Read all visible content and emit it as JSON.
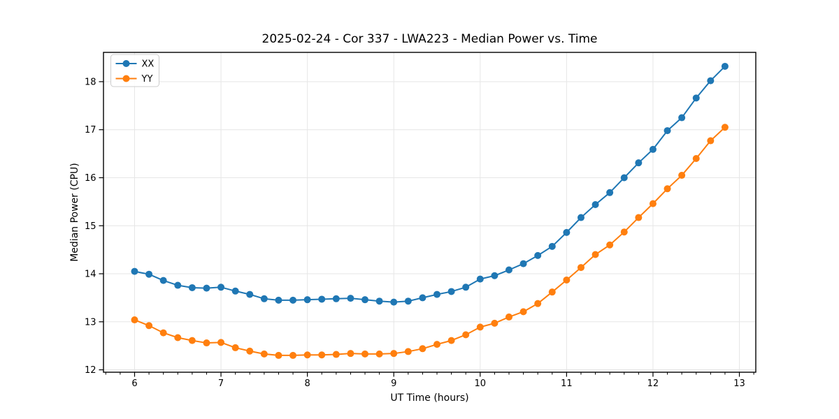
{
  "chart_data": {
    "type": "line",
    "title": "2025-02-24 - Cor 337 - LWA223 - Median Power vs. Time",
    "xlabel": "UT Time (hours)",
    "ylabel": "Median Power (CPU)",
    "x": [
      6.0,
      6.1667,
      6.3333,
      6.5,
      6.6667,
      6.8333,
      7.0,
      7.1667,
      7.3333,
      7.5,
      7.6667,
      7.8333,
      8.0,
      8.1667,
      8.3333,
      8.5,
      8.6667,
      8.8333,
      9.0,
      9.1667,
      9.3333,
      9.5,
      9.6667,
      9.8333,
      10.0,
      10.1667,
      10.3333,
      10.5,
      10.6667,
      10.8333,
      11.0,
      11.1667,
      11.3333,
      11.5,
      11.6667,
      11.8333,
      12.0,
      12.1667,
      12.3333,
      12.5,
      12.6667,
      12.8333
    ],
    "series": [
      {
        "name": "XX",
        "color": "#1f77b4",
        "values": [
          14.05,
          13.99,
          13.86,
          13.76,
          13.71,
          13.7,
          13.72,
          13.64,
          13.57,
          13.48,
          13.45,
          13.45,
          13.46,
          13.47,
          13.48,
          13.49,
          13.46,
          13.43,
          13.41,
          13.43,
          13.5,
          13.57,
          13.63,
          13.72,
          13.89,
          13.96,
          14.08,
          14.21,
          14.38,
          14.57,
          14.86,
          15.17,
          15.44,
          15.69,
          16.0,
          16.31,
          16.59,
          16.98,
          17.25,
          17.66,
          18.02,
          18.32
        ]
      },
      {
        "name": "YY",
        "color": "#ff7f0e",
        "values": [
          13.04,
          12.92,
          12.77,
          12.67,
          12.61,
          12.56,
          12.57,
          12.46,
          12.39,
          12.33,
          12.3,
          12.3,
          12.31,
          12.31,
          12.32,
          12.34,
          12.33,
          12.33,
          12.34,
          12.38,
          12.44,
          12.53,
          12.61,
          12.73,
          12.89,
          12.97,
          13.1,
          13.21,
          13.38,
          13.62,
          13.87,
          14.13,
          14.4,
          14.6,
          14.87,
          15.17,
          15.46,
          15.77,
          16.05,
          16.4,
          16.77,
          17.05
        ]
      }
    ],
    "xlim": [
      5.64,
      13.19
    ],
    "ylim": [
      11.95,
      18.61
    ],
    "xticks": [
      6,
      7,
      8,
      9,
      10,
      11,
      12,
      13
    ],
    "yticks": [
      12,
      13,
      14,
      15,
      16,
      17,
      18
    ],
    "x_minor_tick_interval": 0.166667,
    "grid": true,
    "grid_color": "#e6e6e6",
    "spine_color": "#000000",
    "tick_label_color": "#000000",
    "legend_position": "upper-left",
    "marker": "circle",
    "background": "#ffffff"
  }
}
